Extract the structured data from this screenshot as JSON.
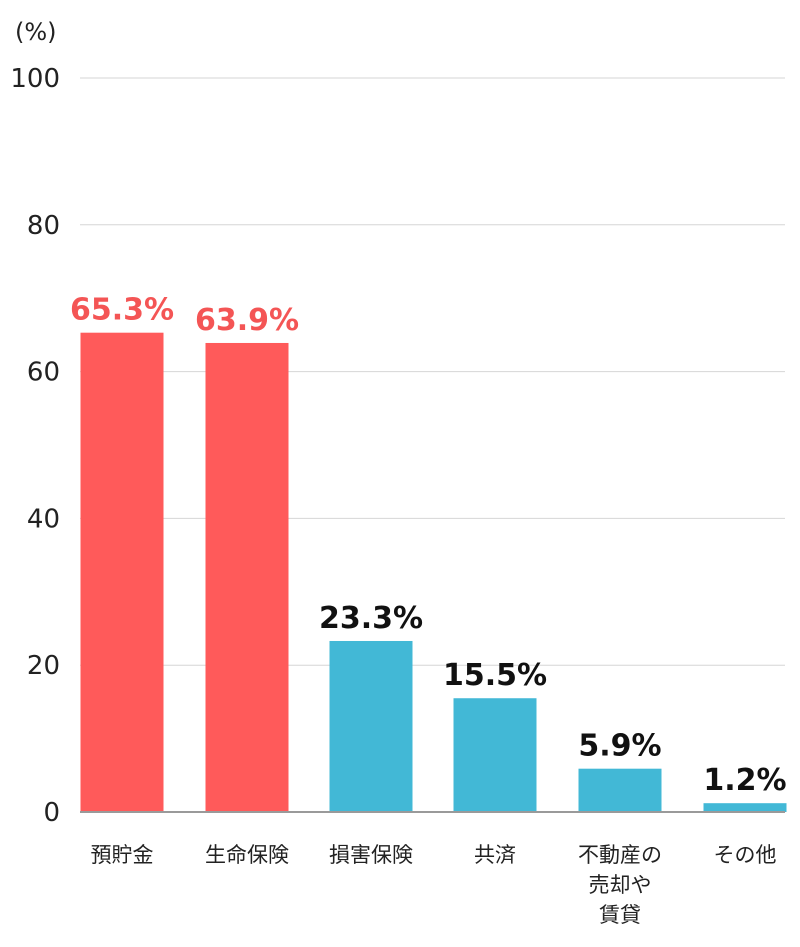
{
  "chart_data": {
    "type": "bar",
    "unit_label": "(%)",
    "categories": [
      [
        "預貯金"
      ],
      [
        "生命保険"
      ],
      [
        "損害保険"
      ],
      [
        "共済"
      ],
      [
        "不動産の",
        "売却や",
        "賃貸"
      ],
      [
        "その他"
      ]
    ],
    "values": [
      65.3,
      63.9,
      23.3,
      15.5,
      5.9,
      1.2
    ],
    "value_labels": [
      "65.3%",
      "63.9%",
      "23.3%",
      "15.5%",
      "5.9%",
      "1.2%"
    ],
    "highlighted": [
      true,
      true,
      false,
      false,
      false,
      false
    ],
    "ylim": [
      0,
      100
    ],
    "yticks": [
      0,
      20,
      40,
      60,
      80,
      100
    ],
    "grid": true,
    "colors": {
      "highlight_bar": "#ff5a5a",
      "highlight_label": "#f45555",
      "normal_bar": "#42b8d6",
      "normal_label": "#111111",
      "grid": "#d6d6d6",
      "axis": "#9a9a9a"
    }
  }
}
